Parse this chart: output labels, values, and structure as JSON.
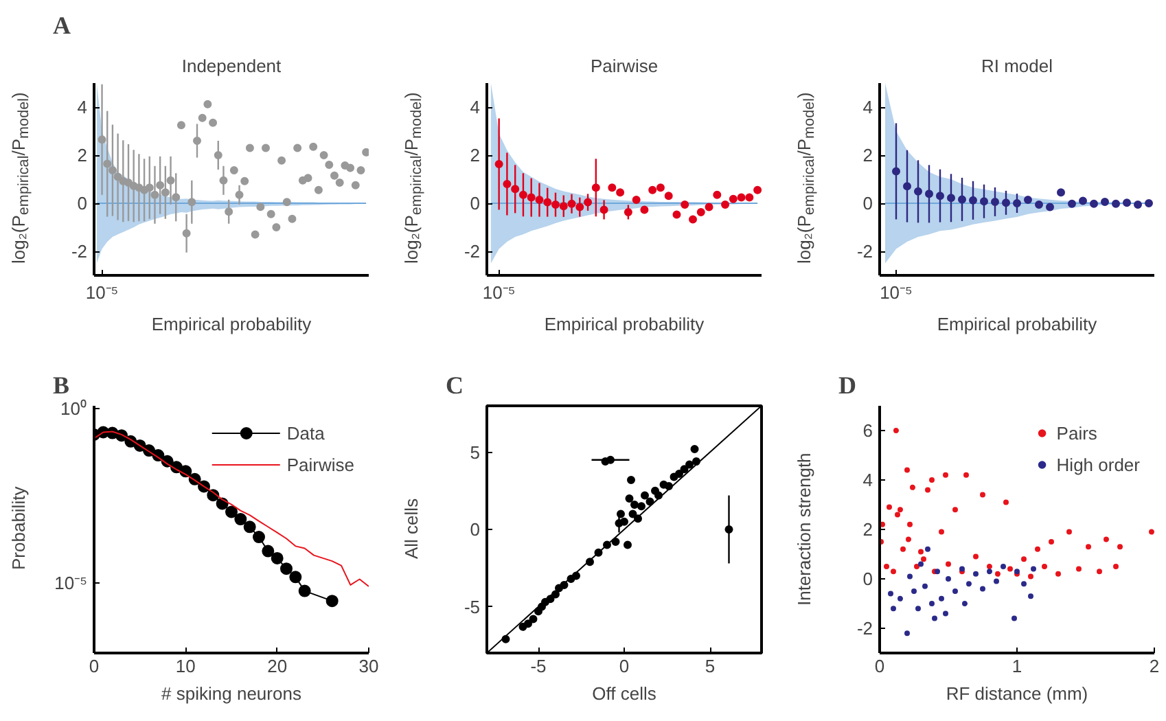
{
  "chart_data": [
    {
      "type": "scatter",
      "title": "Independent",
      "xlabel": "Empirical probability",
      "ylabel": "log₂(P$_{empirical}$/P$_{model}$)",
      "annotations": [
        "10⁻⁵",
        "A"
      ],
      "categories": [
        null,
        null,
        null,
        null,
        null,
        null,
        null,
        null,
        null,
        null,
        null,
        null,
        null,
        null,
        null,
        null,
        null,
        null,
        null,
        null,
        null,
        null,
        null,
        null,
        null,
        null,
        null,
        null,
        null,
        null,
        null,
        null,
        null,
        null,
        null,
        null,
        null,
        null,
        null,
        null,
        null,
        null,
        null,
        null,
        null,
        null,
        null,
        null,
        null,
        null,
        null,
        null
      ],
      "ylim": [
        -3,
        5
      ],
      "yticks": [
        -2,
        0,
        2,
        4
      ],
      "grid": false,
      "legend": false,
      "marker": "circle",
      "series": [
        {
          "type": "line",
          "color": "#6fa8dc",
          "marker": "none",
          "values": [
            0,
            0,
            0,
            0,
            0,
            0,
            0,
            0,
            0,
            0,
            0,
            0,
            0,
            0,
            0,
            0,
            0,
            0,
            0,
            0,
            0,
            0,
            0,
            0,
            0,
            0,
            0,
            0,
            0,
            0,
            0,
            0,
            0,
            0,
            0,
            0,
            0,
            0,
            0,
            0,
            0,
            0,
            0,
            0,
            0,
            0,
            0,
            0,
            0,
            0,
            0,
            0
          ],
          "upper": [
            5,
            3.0,
            2.3,
            1.7,
            1.3,
            1.15,
            1.0,
            0.8,
            0.65,
            0.58,
            0.5,
            0.43,
            0.37,
            0.3,
            0.24,
            0.21,
            0.18,
            0.19,
            0.16,
            0.14,
            0.12,
            0.11,
            0.1,
            0.12,
            0.11,
            0.1,
            0.09,
            0.08,
            0.07,
            0.07,
            0.07,
            0.06,
            0.06,
            0.06,
            0.05,
            0.05,
            0.05,
            0.05,
            0.04,
            0.04,
            0.04,
            0.04,
            0.03,
            0.03,
            0.02,
            0.02,
            0.02,
            0.02,
            0.02,
            0.02,
            0.01,
            0
          ],
          "lower": [
            -2.5,
            -1.9,
            -1.6,
            -1.4,
            -1.29,
            -1.2,
            -1.1,
            -1.0,
            -0.88,
            -0.8,
            -0.73,
            -0.65,
            -0.6,
            -0.53,
            -0.46,
            -0.42,
            -0.37,
            -0.39,
            -0.33,
            -0.29,
            -0.26,
            -0.24,
            -0.22,
            -0.25,
            -0.23,
            -0.2,
            -0.18,
            -0.16,
            -0.15,
            -0.14,
            -0.14,
            -0.13,
            -0.12,
            -0.11,
            -0.11,
            -0.1,
            -0.1,
            -0.09,
            -0.09,
            -0.08,
            -0.08,
            -0.07,
            -0.07,
            -0.06,
            -0.05,
            -0.05,
            -0.04,
            -0.04,
            -0.04,
            -0.03,
            -0.02,
            0
          ]
        },
        {
          "type": "scatter",
          "color": "#999999",
          "values": [
            null,
            2.65,
            1.64,
            1.37,
            1.1,
            0.92,
            0.86,
            0.72,
            0.65,
            0.55,
            0.65,
            0.35,
            0.75,
            0.45,
            0.95,
            0.25,
            3.25,
            -1.25,
            0.05,
            2.6,
            3.55,
            4.12,
            3.35,
            2.0,
            0.95,
            -0.35,
            1.37,
            0.35,
            0.92,
            2.3,
            -1.3,
            -0.15,
            2.3,
            -0.45,
            -1.0,
            1.78,
            0.05,
            -0.65,
            2.3,
            0.95,
            1.05,
            2.35,
            0.55,
            2.0,
            1.6,
            1.15,
            0.86,
            1.57,
            1.47,
            0.75,
            1.37,
            2.12
          ],
          "errors": [
            null,
            2.3,
            2.2,
            1.9,
            1.8,
            1.7,
            1.6,
            1.5,
            1.4,
            1.3,
            1.3,
            1.2,
            1.2,
            1.1,
            1.0,
            1.0,
            null,
            0.8,
            0.9,
            0.7,
            null,
            null,
            null,
            0.6,
            0.6,
            0.5,
            null,
            0.4,
            null,
            null,
            null,
            null,
            null,
            null,
            null,
            null,
            null,
            null,
            null,
            null,
            null,
            null,
            null,
            null,
            null,
            null,
            null,
            null,
            null,
            null,
            null,
            null
          ]
        }
      ]
    },
    {
      "type": "scatter",
      "title": "Pairwise",
      "xlabel": "Empirical probability",
      "ylabel": "log₂(P$_{empirical}$/P$_{model}$)",
      "annotations": [
        "10⁻⁵"
      ],
      "categories": [
        null,
        null,
        null,
        null,
        null,
        null,
        null,
        null,
        null,
        null,
        null,
        null,
        null,
        null,
        null,
        null,
        null,
        null,
        null,
        null,
        null,
        null,
        null,
        null,
        null,
        null,
        null,
        null,
        null,
        null,
        null,
        null,
        null,
        null
      ],
      "ylim": [
        -3,
        5
      ],
      "yticks": [
        -2,
        0,
        2,
        4
      ],
      "grid": false,
      "legend": false,
      "marker": "circle",
      "series": [
        {
          "type": "line",
          "color": "#6fa8dc",
          "marker": "none",
          "values": [
            0,
            0,
            0,
            0,
            0,
            0,
            0,
            0,
            0,
            0,
            0,
            0,
            0,
            0,
            0,
            0,
            0,
            0,
            0,
            0,
            0,
            0,
            0,
            0,
            0,
            0,
            0,
            0,
            0,
            0,
            0,
            0,
            0,
            0
          ],
          "upper": [
            5,
            2.9,
            2.2,
            1.7,
            1.3,
            1.1,
            0.9,
            0.75,
            0.6,
            0.5,
            0.43,
            0.36,
            0.28,
            0.22,
            0.18,
            0.15,
            0.13,
            0.11,
            0.1,
            0.08,
            0.07,
            0.06,
            0.06,
            0.06,
            0.05,
            0.05,
            0.04,
            0.03,
            0.02,
            0.02,
            0.02,
            0.02,
            0.01,
            0
          ],
          "lower": [
            -2.5,
            -1.9,
            -1.6,
            -1.4,
            -1.29,
            -1.15,
            -1.05,
            -0.95,
            -0.83,
            -0.73,
            -0.65,
            -0.58,
            -0.5,
            -0.43,
            -0.37,
            -0.32,
            -0.28,
            -0.24,
            -0.21,
            -0.16,
            -0.15,
            -0.13,
            -0.12,
            -0.11,
            -0.1,
            -0.09,
            -0.07,
            -0.06,
            -0.05,
            -0.04,
            -0.04,
            -0.03,
            -0.02,
            0
          ]
        },
        {
          "type": "scatter",
          "color": "#e0001b",
          "values": [
            null,
            1.63,
            0.8,
            0.59,
            0.35,
            0.24,
            0.14,
            0.04,
            -0.06,
            -0.12,
            -0.02,
            -0.16,
            0.04,
            0.65,
            -0.27,
            0.65,
            0.45,
            -0.37,
            0.14,
            -0.27,
            0.55,
            0.65,
            0.31,
            -0.47,
            -0.06,
            -0.67,
            -0.37,
            -0.16,
            0.35,
            -0.06,
            0.18,
            0.24,
            0.24,
            0.55
          ],
          "errors": [
            null,
            1.9,
            1.3,
            1.0,
            0.9,
            0.8,
            0.7,
            0.6,
            0.5,
            0.45,
            0.4,
            0.4,
            0.35,
            1.2,
            0.4,
            null,
            null,
            0.3,
            null,
            null,
            null,
            null,
            null,
            null,
            null,
            null,
            null,
            null,
            null,
            null,
            null,
            null,
            null,
            null
          ]
        }
      ]
    },
    {
      "type": "scatter",
      "title": "RI model",
      "xlabel": "Empirical probability",
      "ylabel": "log₂(P$_{empirical}$/P$_{model}$)",
      "annotations": [
        "10⁻⁵"
      ],
      "categories": [
        null,
        null,
        null,
        null,
        null,
        null,
        null,
        null,
        null,
        null,
        null,
        null,
        null,
        null,
        null,
        null,
        null,
        null,
        null,
        null,
        null,
        null,
        null,
        null,
        null
      ],
      "ylim": [
        -3,
        5
      ],
      "yticks": [
        -2,
        0,
        2,
        4
      ],
      "grid": false,
      "legend": false,
      "marker": "circle",
      "series": [
        {
          "type": "line",
          "color": "#6fa8dc",
          "marker": "none",
          "values": [
            0,
            0,
            0,
            0,
            0,
            0,
            0,
            0,
            0,
            0,
            0,
            0,
            0,
            0,
            0,
            0,
            0,
            0,
            0,
            0,
            0,
            0,
            0,
            0,
            0
          ],
          "upper": [
            5,
            3.0,
            2.2,
            1.7,
            1.3,
            1.1,
            1.0,
            0.8,
            0.65,
            0.58,
            0.5,
            0.42,
            0.35,
            0.24,
            0.19,
            0.15,
            0.11,
            0.09,
            0.06,
            0.05,
            0.04,
            0.02,
            0.02,
            0.01,
            0
          ],
          "lower": [
            -2.5,
            -1.9,
            -1.6,
            -1.4,
            -1.29,
            -1.15,
            -1.1,
            -1.0,
            -0.88,
            -0.8,
            -0.73,
            -0.64,
            -0.57,
            -0.45,
            -0.38,
            -0.32,
            -0.23,
            -0.19,
            -0.13,
            -0.1,
            -0.07,
            -0.05,
            -0.03,
            -0.02,
            0
          ]
        },
        {
          "type": "scatter",
          "color": "#2e2882",
          "values": [
            null,
            1.33,
            0.71,
            0.49,
            0.39,
            0.31,
            0.22,
            0.16,
            0.12,
            0.08,
            0.06,
            0.02,
            0,
            0.14,
            -0.06,
            -0.16,
            0.45,
            -0.02,
            0.1,
            -0.02,
            0.06,
            -0.02,
            0.02,
            -0.06,
            0
          ],
          "errors": [
            null,
            2.0,
            1.5,
            1.3,
            1.2,
            1.1,
            1.0,
            0.9,
            0.8,
            0.7,
            0.6,
            0.5,
            0.4,
            null,
            null,
            null,
            null,
            null,
            null,
            null,
            null,
            null,
            null,
            null,
            null
          ]
        }
      ]
    },
    {
      "type": "line",
      "xlabel": "# spiking neurons",
      "ylabel": "Probability",
      "annotations": [
        "B"
      ],
      "log": "y",
      "xlim": [
        0,
        30
      ],
      "xticks": [
        0,
        10,
        20,
        30
      ],
      "ylim": [
        1e-07,
        1.2
      ],
      "yticks": [
        {
          "value": 1,
          "label": "10⁰"
        },
        {
          "value": 1e-05,
          "label": "10⁻⁵"
        }
      ],
      "grid": false,
      "legend": "top right",
      "series": [
        {
          "name": "Data",
          "color": "#000000",
          "marker": "circle",
          "x": [
            0,
            1,
            2,
            3,
            4,
            5,
            6,
            7,
            8,
            9,
            10,
            11,
            12,
            13,
            14,
            15,
            16,
            17,
            18,
            19,
            20,
            21,
            22,
            23,
            26
          ],
          "values": [
            0.18,
            0.21,
            0.2,
            0.17,
            0.115,
            0.087,
            0.063,
            0.046,
            0.031,
            0.021,
            0.016,
            0.0095,
            0.0059,
            0.0033,
            0.0019,
            0.0011,
            0.00068,
            0.00041,
            0.00021,
            8.3e-05,
            5.2e-05,
            2.6e-05,
            1.5e-05,
            6e-06,
            3.1e-06
          ]
        },
        {
          "name": "Pairwise",
          "color": "#e8141c",
          "marker": "none",
          "x": [
            0,
            1,
            2,
            3,
            4,
            5,
            6,
            7,
            8,
            9,
            10,
            11,
            12,
            13,
            14,
            15,
            16,
            17,
            18,
            19,
            20,
            21,
            22,
            23,
            24,
            25,
            26,
            27,
            28,
            29,
            30
          ],
          "values": [
            0.14,
            0.21,
            0.22,
            0.18,
            0.13,
            0.087,
            0.059,
            0.04,
            0.026,
            0.018,
            0.013,
            0.0089,
            0.0059,
            0.004,
            0.0025,
            0.0018,
            0.0012,
            0.00089,
            0.0006,
            0.00041,
            0.00028,
            0.00019,
            0.000115,
            0.0001,
            6.3e-05,
            5.2e-05,
            4.3e-05,
            3.2e-05,
            8.9e-06,
            1.3e-05,
            8.1e-06
          ]
        }
      ]
    },
    {
      "type": "scatter",
      "xlabel": "Off cells",
      "ylabel": "All cells",
      "annotations": [
        "C"
      ],
      "xlim": [
        -8,
        8
      ],
      "xticks": [
        -5,
        0,
        5
      ],
      "ylim": [
        -8,
        8
      ],
      "yticks": [
        -5,
        0,
        5
      ],
      "grid": false,
      "legend": false,
      "marker": "circle",
      "series": [
        {
          "type": "line",
          "color": "#000000",
          "marker": "none",
          "x": [
            -8,
            8
          ],
          "values": [
            -8,
            8
          ]
        },
        {
          "type": "scatter",
          "color": "#000000",
          "x": [
            -0.8,
            -1.1,
            6.1,
            -6.9,
            -5.9,
            -5.6,
            -5.3,
            -5.0,
            -4.8,
            -4.6,
            -4.3,
            -4.0,
            -3.8,
            -3.5,
            -3.1,
            -2.8,
            -2.0,
            -1.5,
            -1.0,
            -0.5,
            -0.3,
            -0.2,
            0.0,
            0.2,
            0.3,
            0.4,
            0.5,
            0.6,
            0.8,
            1.0,
            1.2,
            1.5,
            1.8,
            2.0,
            2.3,
            2.6,
            2.9,
            3.2,
            3.5,
            3.8,
            4.2,
            4.1
          ],
          "values": [
            4.5,
            4.4,
            0,
            -7.1,
            -6.3,
            -6.1,
            -5.8,
            -5.3,
            -5.0,
            -4.7,
            -4.5,
            -4.2,
            -3.8,
            -3.6,
            -3.2,
            -3.0,
            -2.1,
            -1.5,
            -1.0,
            -0.8,
            0.4,
            1.0,
            0.5,
            -1.0,
            2.0,
            3.2,
            1.0,
            1.6,
            0.7,
            1.5,
            2.2,
            1.8,
            2.5,
            2.2,
            2.9,
            2.8,
            3.4,
            3.6,
            3.9,
            4.2,
            4.4,
            5.2
          ],
          "errors": [
            null,
            null,
            2.2,
            null,
            null,
            null,
            null,
            null,
            null,
            null,
            null,
            null,
            null,
            null,
            null,
            null,
            null,
            null,
            null,
            null,
            0.6,
            null,
            null,
            null,
            null,
            null,
            null,
            null,
            null,
            null,
            null,
            null,
            null,
            null,
            null,
            null,
            null,
            null,
            null,
            null,
            null,
            null
          ],
          "xerrors": [
            1.1,
            null,
            null,
            null,
            null,
            null,
            null,
            null,
            null,
            null,
            null,
            null,
            null,
            null,
            null,
            null,
            null,
            null,
            null,
            null,
            null,
            null,
            null,
            null,
            null,
            null,
            null,
            null,
            null,
            null,
            null,
            null,
            null,
            null,
            null,
            null,
            null,
            null,
            null,
            null,
            null,
            null
          ]
        }
      ]
    },
    {
      "type": "scatter",
      "xlabel": "RF distance (mm)",
      "ylabel": "Interaction strength",
      "annotations": [
        "D"
      ],
      "xlim": [
        0,
        2
      ],
      "xticks": [
        0,
        1,
        2
      ],
      "ylim": [
        -3,
        7
      ],
      "yticks": [
        -2,
        0,
        2,
        4,
        6
      ],
      "grid": false,
      "legend": "top right",
      "marker": "circle",
      "series": [
        {
          "name": "Pairs",
          "color": "#e8141c",
          "x": [
            0.01,
            0.02,
            0.05,
            0.07,
            0.1,
            0.12,
            0.13,
            0.15,
            0.17,
            0.2,
            0.21,
            0.22,
            0.24,
            0.27,
            0.3,
            0.32,
            0.35,
            0.38,
            0.4,
            0.45,
            0.48,
            0.5,
            0.55,
            0.6,
            0.63,
            0.7,
            0.75,
            0.8,
            0.86,
            0.92,
            0.95,
            1.0,
            1.05,
            1.1,
            1.15,
            1.2,
            1.25,
            1.3,
            1.38,
            1.45,
            1.52,
            1.6,
            1.65,
            1.72,
            1.75,
            1.98
          ],
          "values": [
            1.5,
            2.2,
            0.5,
            2.9,
            0.3,
            6.0,
            2.6,
            2.8,
            1.2,
            4.4,
            1.6,
            2.2,
            3.7,
            0.5,
            1.1,
            0.8,
            3.6,
            4.0,
            0.3,
            1.9,
            4.2,
            0.6,
            2.8,
            0.3,
            4.2,
            0.9,
            3.4,
            0.5,
            0.2,
            3.1,
            0.4,
            0.2,
            0.8,
            0.1,
            1.2,
            0.5,
            1.5,
            0.2,
            1.9,
            0.4,
            1.3,
            0.3,
            1.6,
            0.5,
            1.3,
            1.9
          ]
        },
        {
          "name": "High order",
          "color": "#2b2a8a",
          "x": [
            0.08,
            0.1,
            0.15,
            0.2,
            0.22,
            0.25,
            0.28,
            0.3,
            0.33,
            0.35,
            0.38,
            0.4,
            0.42,
            0.45,
            0.48,
            0.5,
            0.55,
            0.6,
            0.62,
            0.65,
            0.7,
            0.75,
            0.8,
            0.85,
            0.9,
            0.98,
            1.0,
            1.05,
            1.1,
            1.12
          ],
          "values": [
            -0.6,
            -1.2,
            -0.8,
            -2.2,
            0.1,
            -0.5,
            -1.2,
            0.6,
            -0.3,
            1.2,
            -1.0,
            -1.6,
            0.3,
            -0.8,
            -1.4,
            0.0,
            -0.5,
            0.4,
            -1.0,
            -0.2,
            0.2,
            -0.4,
            0.3,
            -0.1,
            0.5,
            -1.6,
            0.3,
            -0.2,
            -0.7,
            0.4
          ]
        }
      ]
    }
  ]
}
